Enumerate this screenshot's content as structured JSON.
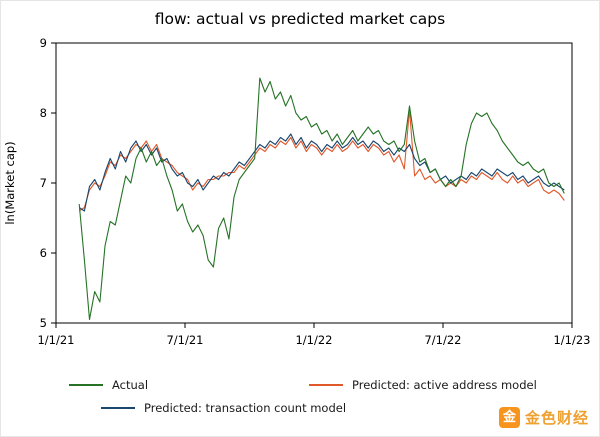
{
  "page": {
    "title": "flow: actual vs predicted market caps"
  },
  "chart_data": {
    "type": "line",
    "title": "flow: actual vs predicted market caps",
    "xlabel": "",
    "ylabel": "ln(Market cap)",
    "xlim": [
      2021.0,
      2023.0
    ],
    "ylim": [
      5,
      9
    ],
    "x_ticks": [
      2021.0,
      2021.5,
      2022.0,
      2022.5,
      2023.0
    ],
    "x_tick_labels": [
      "1/1/21",
      "7/1/21",
      "1/1/22",
      "7/1/22",
      "1/1/23"
    ],
    "y_ticks": [
      5,
      6,
      7,
      8,
      9
    ],
    "grid": false,
    "legend_position": "bottom",
    "x_start": 2021.09,
    "x_step": 0.02,
    "draw_order": [
      1,
      2,
      0
    ],
    "series": [
      {
        "name": "Actual",
        "color": "#267326",
        "values": [
          6.7,
          5.9,
          5.05,
          5.45,
          5.3,
          6.1,
          6.45,
          6.4,
          6.75,
          7.1,
          7.0,
          7.35,
          7.5,
          7.3,
          7.45,
          7.25,
          7.35,
          7.1,
          6.9,
          6.6,
          6.7,
          6.45,
          6.3,
          6.4,
          6.25,
          5.9,
          5.8,
          6.35,
          6.5,
          6.2,
          6.8,
          7.05,
          7.15,
          7.25,
          7.35,
          8.5,
          8.3,
          8.45,
          8.2,
          8.3,
          8.1,
          8.25,
          8.0,
          7.9,
          7.95,
          7.8,
          7.85,
          7.7,
          7.75,
          7.6,
          7.7,
          7.55,
          7.65,
          7.75,
          7.6,
          7.7,
          7.8,
          7.7,
          7.75,
          7.6,
          7.55,
          7.6,
          7.45,
          7.55,
          8.1,
          7.6,
          7.3,
          7.35,
          7.15,
          7.2,
          7.05,
          6.95,
          7.05,
          6.95,
          7.1,
          7.55,
          7.85,
          8.0,
          7.95,
          8.0,
          7.85,
          7.75,
          7.6,
          7.5,
          7.4,
          7.3,
          7.25,
          7.3,
          7.2,
          7.15,
          7.2,
          7.0,
          6.95,
          7.0,
          6.85
        ]
      },
      {
        "name": "Predicted: active address model",
        "color": "#e0592b",
        "values": [
          6.6,
          6.65,
          6.9,
          7.0,
          6.95,
          7.1,
          7.3,
          7.25,
          7.4,
          7.35,
          7.45,
          7.55,
          7.5,
          7.6,
          7.45,
          7.55,
          7.35,
          7.3,
          7.25,
          7.15,
          7.1,
          7.05,
          6.9,
          7.0,
          6.95,
          7.05,
          7.05,
          7.1,
          7.1,
          7.15,
          7.15,
          7.25,
          7.2,
          7.3,
          7.4,
          7.5,
          7.45,
          7.55,
          7.5,
          7.6,
          7.55,
          7.65,
          7.5,
          7.6,
          7.45,
          7.55,
          7.5,
          7.4,
          7.5,
          7.45,
          7.55,
          7.45,
          7.5,
          7.6,
          7.5,
          7.55,
          7.45,
          7.55,
          7.5,
          7.4,
          7.45,
          7.3,
          7.4,
          7.2,
          8.05,
          7.1,
          7.2,
          7.05,
          7.1,
          7.0,
          7.05,
          6.95,
          7.0,
          6.95,
          7.05,
          7.0,
          7.1,
          7.05,
          7.15,
          7.1,
          7.05,
          7.15,
          7.05,
          7.0,
          7.1,
          7.0,
          7.05,
          6.95,
          7.0,
          7.05,
          6.9,
          6.85,
          6.9,
          6.85,
          6.75
        ]
      },
      {
        "name": "Predicted: transaction count model",
        "color": "#1a476f",
        "values": [
          6.65,
          6.6,
          6.95,
          7.05,
          6.9,
          7.15,
          7.35,
          7.2,
          7.45,
          7.3,
          7.5,
          7.6,
          7.45,
          7.55,
          7.4,
          7.5,
          7.3,
          7.35,
          7.2,
          7.1,
          7.15,
          7.0,
          6.95,
          7.05,
          6.9,
          7.0,
          7.1,
          7.05,
          7.15,
          7.1,
          7.2,
          7.3,
          7.25,
          7.35,
          7.45,
          7.55,
          7.5,
          7.6,
          7.55,
          7.65,
          7.6,
          7.7,
          7.55,
          7.65,
          7.5,
          7.6,
          7.55,
          7.45,
          7.55,
          7.5,
          7.6,
          7.5,
          7.55,
          7.65,
          7.55,
          7.6,
          7.5,
          7.6,
          7.55,
          7.45,
          7.5,
          7.4,
          7.5,
          7.45,
          7.55,
          7.35,
          7.25,
          7.3,
          7.15,
          7.2,
          7.05,
          7.1,
          7.0,
          7.05,
          7.1,
          7.05,
          7.15,
          7.1,
          7.2,
          7.15,
          7.1,
          7.2,
          7.15,
          7.1,
          7.15,
          7.05,
          7.1,
          7.0,
          7.05,
          7.1,
          7.0,
          6.95,
          7.0,
          6.95,
          6.9
        ]
      }
    ]
  },
  "watermark": {
    "icon_char": "金",
    "text": "金色财经",
    "icon_color": "#f7941d",
    "text_color": "#efa02f"
  }
}
